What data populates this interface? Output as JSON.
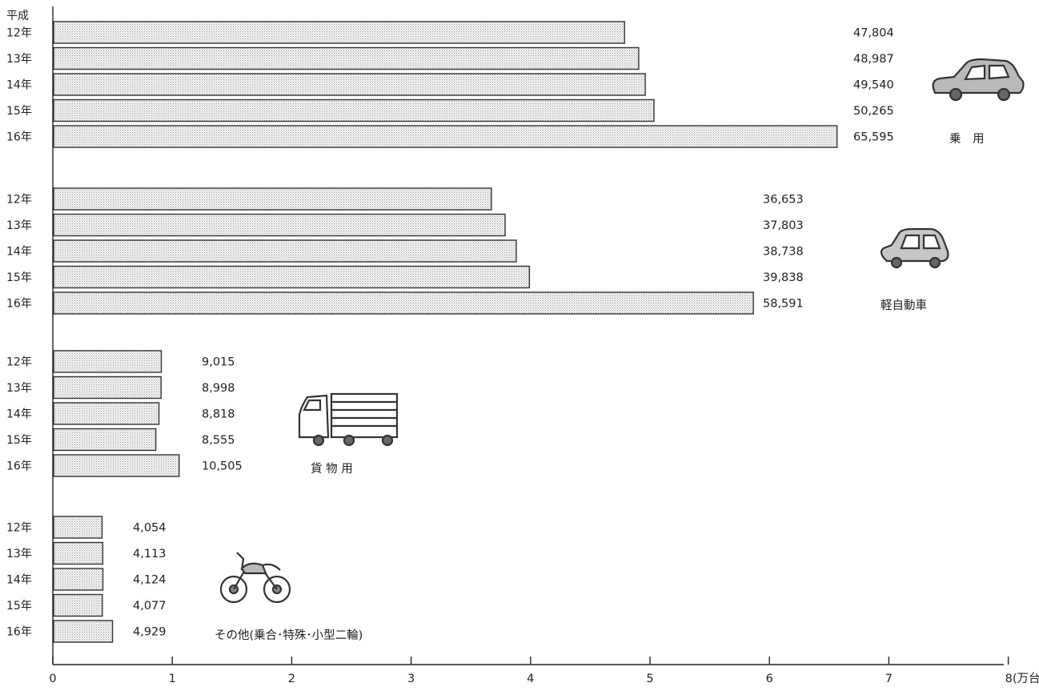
{
  "chart_data": {
    "type": "bar",
    "orientation": "horizontal",
    "era_label": "平成",
    "unit_label": "(万台)",
    "xlim": [
      0,
      8
    ],
    "xticks": [
      0,
      1,
      2,
      3,
      4,
      5,
      6,
      7,
      8
    ],
    "groups": [
      {
        "name": "乗　用",
        "icon": "car-icon",
        "categories": [
          "12年",
          "13年",
          "14年",
          "15年",
          "16年"
        ],
        "values": [
          47804,
          48987,
          49540,
          50265,
          65595
        ],
        "value_labels": [
          "47,804",
          "48,987",
          "49,540",
          "50,265",
          "65,595"
        ]
      },
      {
        "name": "軽自動車",
        "icon": "compact-car-icon",
        "categories": [
          "12年",
          "13年",
          "14年",
          "15年",
          "16年"
        ],
        "values": [
          36653,
          37803,
          38738,
          39838,
          58591
        ],
        "value_labels": [
          "36,653",
          "37,803",
          "38,738",
          "39,838",
          "58,591"
        ]
      },
      {
        "name": "貨 物 用",
        "icon": "truck-icon",
        "categories": [
          "12年",
          "13年",
          "14年",
          "15年",
          "16年"
        ],
        "values": [
          9015,
          8998,
          8818,
          8555,
          10505
        ],
        "value_labels": [
          "9,015",
          "8,998",
          "8,818",
          "8,555",
          "10,505"
        ]
      },
      {
        "name": "その他(乗合･特殊･小型二輪)",
        "icon": "motorcycle-icon",
        "categories": [
          "12年",
          "13年",
          "14年",
          "15年",
          "16年"
        ],
        "values": [
          4054,
          4113,
          4124,
          4077,
          4929
        ],
        "value_labels": [
          "4,054",
          "4,113",
          "4,124",
          "4,077",
          "4,929"
        ]
      }
    ]
  }
}
